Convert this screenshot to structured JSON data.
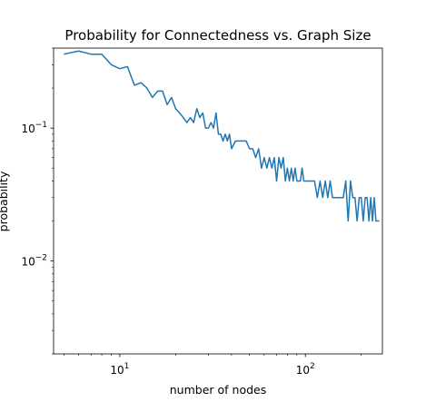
{
  "chart_data": {
    "type": "line",
    "title": "Probability for Connectedness vs. Graph Size",
    "xlabel": "number of nodes",
    "ylabel": "probability",
    "xscale": "log",
    "yscale": "log",
    "xlim": [
      4.4,
      260
    ],
    "ylim": [
      0.002,
      0.4
    ],
    "grid": false,
    "x_ticks": [
      {
        "value": 10,
        "base": "10",
        "exp": "1"
      },
      {
        "value": 100,
        "base": "10",
        "exp": "2"
      }
    ],
    "y_ticks": [
      {
        "value": 0.1,
        "base": "10",
        "exp": "−1"
      },
      {
        "value": 0.01,
        "base": "10",
        "exp": "−2"
      }
    ],
    "series": [
      {
        "color": "#1f77b4",
        "x": [
          5,
          6,
          7,
          8,
          9,
          10,
          11,
          12,
          13,
          14,
          15,
          16,
          17,
          18,
          19,
          20,
          21,
          22,
          23,
          24,
          25,
          26,
          27,
          28,
          29,
          30,
          31,
          32,
          33,
          34,
          35,
          36,
          37,
          38,
          39,
          40,
          42,
          44,
          46,
          48,
          50,
          52,
          54,
          56,
          58,
          60,
          62,
          64,
          66,
          68,
          70,
          72,
          74,
          76,
          78,
          80,
          82,
          84,
          86,
          88,
          90,
          92,
          94,
          96,
          98,
          100,
          104,
          108,
          112,
          116,
          120,
          124,
          128,
          132,
          136,
          140,
          145,
          150,
          155,
          160,
          165,
          170,
          175,
          180,
          185,
          190,
          195,
          200,
          205,
          210,
          215,
          220,
          225,
          230,
          235,
          240,
          245,
          250
        ],
        "y": [
          0.36,
          0.38,
          0.36,
          0.36,
          0.3,
          0.28,
          0.29,
          0.21,
          0.22,
          0.2,
          0.17,
          0.19,
          0.19,
          0.15,
          0.17,
          0.14,
          0.13,
          0.12,
          0.11,
          0.12,
          0.11,
          0.14,
          0.12,
          0.13,
          0.1,
          0.1,
          0.11,
          0.1,
          0.13,
          0.09,
          0.09,
          0.08,
          0.09,
          0.08,
          0.09,
          0.07,
          0.08,
          0.08,
          0.08,
          0.08,
          0.07,
          0.07,
          0.06,
          0.07,
          0.05,
          0.06,
          0.05,
          0.06,
          0.05,
          0.06,
          0.04,
          0.06,
          0.05,
          0.06,
          0.04,
          0.05,
          0.04,
          0.05,
          0.04,
          0.05,
          0.04,
          0.04,
          0.04,
          0.05,
          0.04,
          0.04,
          0.04,
          0.04,
          0.04,
          0.03,
          0.04,
          0.03,
          0.04,
          0.03,
          0.04,
          0.03,
          0.03,
          0.03,
          0.03,
          0.03,
          0.04,
          0.02,
          0.04,
          0.03,
          0.03,
          0.02,
          0.03,
          0.03,
          0.02,
          0.03,
          0.03,
          0.02,
          0.03,
          0.02,
          0.03,
          0.02,
          0.02,
          0.02
        ]
      }
    ]
  }
}
